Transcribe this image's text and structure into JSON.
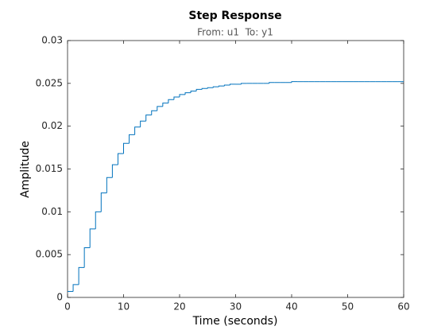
{
  "chart_data": {
    "type": "stairs",
    "title": "Step Response",
    "subtitle": "From: u1  To: y1",
    "x_label": "Time (seconds)",
    "y_label": "Amplitude",
    "x": [
      0,
      1,
      2,
      3,
      4,
      5,
      6,
      7,
      8,
      9,
      10,
      11,
      12,
      13,
      14,
      15,
      16,
      17,
      18,
      19,
      20,
      21,
      22,
      23,
      24,
      25,
      26,
      27,
      28,
      29,
      30,
      31,
      32,
      33,
      34,
      35,
      36,
      37,
      38,
      39,
      40,
      41,
      42,
      43,
      44,
      45,
      46,
      47,
      48,
      49,
      50,
      51,
      52,
      53,
      54,
      55,
      56,
      57,
      58,
      59,
      60
    ],
    "series": [
      {
        "color": "#0072bd",
        "values": [
          0.0007,
          0.0015,
          0.0035,
          0.0058,
          0.008,
          0.01,
          0.0122,
          0.014,
          0.0155,
          0.0168,
          0.018,
          0.019,
          0.0199,
          0.0206,
          0.0213,
          0.0218,
          0.0223,
          0.0227,
          0.0231,
          0.0234,
          0.0237,
          0.0239,
          0.0241,
          0.0243,
          0.0244,
          0.0245,
          0.0246,
          0.0247,
          0.0248,
          0.0249,
          0.0249,
          0.025,
          0.025,
          0.025,
          0.025,
          0.025,
          0.0251,
          0.0251,
          0.0251,
          0.0251,
          0.0252,
          0.0252,
          0.0252,
          0.0252,
          0.0252,
          0.0252,
          0.0252,
          0.0252,
          0.0252,
          0.0252,
          0.0252,
          0.0252,
          0.0252,
          0.0252,
          0.0252,
          0.0252,
          0.0252,
          0.0252,
          0.0252,
          0.0252,
          0.0252
        ]
      }
    ],
    "xlim": [
      0,
      60
    ],
    "xticks": [
      0,
      10,
      20,
      30,
      40,
      50,
      60
    ],
    "ylim": [
      0,
      0.03
    ],
    "yticks": [
      0,
      0.005,
      0.01,
      0.015,
      0.02,
      0.025,
      0.03
    ],
    "grid": false
  }
}
